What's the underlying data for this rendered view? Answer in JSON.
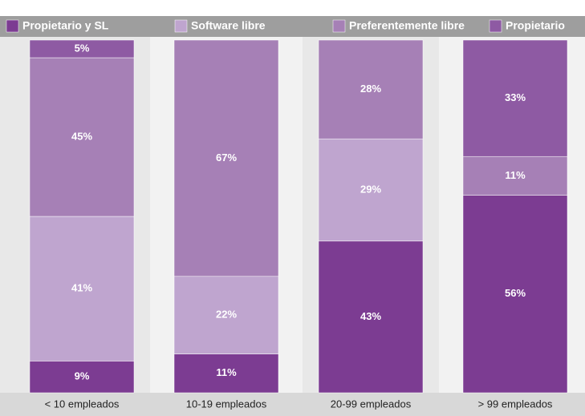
{
  "chart_data": {
    "type": "stacked_bar_100",
    "categories": [
      "< 10 empleados",
      "10-19 empleados",
      "20-99 empleados",
      "> 99 empleados"
    ],
    "ylim": [
      0,
      100
    ],
    "series": [
      {
        "name": "Propietario y SL",
        "color": "#7c3c92",
        "values": [
          9,
          11,
          43,
          56
        ],
        "value_labels": [
          "9%",
          "11%",
          "43%",
          "56%"
        ]
      },
      {
        "name": "Software libre",
        "color": "#bfa5cf",
        "values": [
          41,
          22,
          29,
          null
        ],
        "value_labels": [
          "41%",
          "22%",
          "29%",
          null
        ]
      },
      {
        "name": "Preferentemente libre",
        "color": "#a680b6",
        "values": [
          45,
          67,
          28,
          11
        ],
        "value_labels": [
          "45%",
          "67%",
          "28%",
          "11%"
        ]
      },
      {
        "name": "Propietario",
        "color": "#8e5aa3",
        "values": [
          5,
          null,
          null,
          33
        ],
        "value_labels": [
          "5%",
          null,
          null,
          "33%"
        ]
      }
    ]
  }
}
